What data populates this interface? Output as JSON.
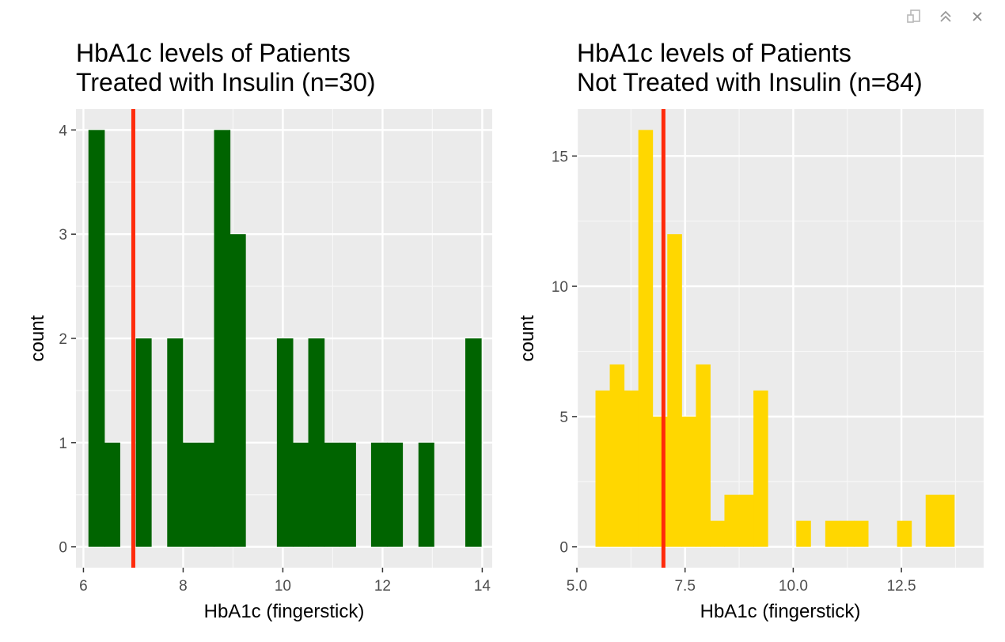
{
  "toolbar": {
    "icons": [
      "export-icon",
      "collapse-icon",
      "close-icon"
    ]
  },
  "chart_data": [
    {
      "type": "bar",
      "title": "HbA1c levels of Patients\nTreated with Insulin (n=30)",
      "xlabel": "HbA1c (fingerstick)",
      "ylabel": "count",
      "xlim": [
        5.85,
        14.2
      ],
      "ylim": [
        -0.2,
        4.2
      ],
      "x_ticks": [
        6,
        8,
        10,
        12,
        14
      ],
      "x_tick_labels": [
        "6",
        "8",
        "10",
        "12",
        "14"
      ],
      "y_ticks": [
        0,
        1,
        2,
        3,
        4
      ],
      "y_tick_labels": [
        "0",
        "1",
        "2",
        "3",
        "4"
      ],
      "bar_color": "#006400",
      "reference_line": {
        "x": 7.0,
        "color": "#ff2a0a"
      },
      "bins": [
        {
          "x0": 6.1,
          "x1": 6.42,
          "count": 4
        },
        {
          "x0": 6.42,
          "x1": 6.73,
          "count": 1
        },
        {
          "x0": 6.73,
          "x1": 7.05,
          "count": 0
        },
        {
          "x0": 7.05,
          "x1": 7.36,
          "count": 2
        },
        {
          "x0": 7.36,
          "x1": 7.68,
          "count": 0
        },
        {
          "x0": 7.68,
          "x1": 7.99,
          "count": 2
        },
        {
          "x0": 7.99,
          "x1": 8.31,
          "count": 1
        },
        {
          "x0": 8.31,
          "x1": 8.62,
          "count": 1
        },
        {
          "x0": 8.62,
          "x1": 8.94,
          "count": 4
        },
        {
          "x0": 8.94,
          "x1": 9.25,
          "count": 3
        },
        {
          "x0": 9.25,
          "x1": 9.57,
          "count": 0
        },
        {
          "x0": 9.57,
          "x1": 9.88,
          "count": 0
        },
        {
          "x0": 9.88,
          "x1": 10.2,
          "count": 2
        },
        {
          "x0": 10.2,
          "x1": 10.51,
          "count": 1
        },
        {
          "x0": 10.51,
          "x1": 10.83,
          "count": 2
        },
        {
          "x0": 10.83,
          "x1": 11.14,
          "count": 1
        },
        {
          "x0": 11.14,
          "x1": 11.46,
          "count": 1
        },
        {
          "x0": 11.46,
          "x1": 11.77,
          "count": 0
        },
        {
          "x0": 11.77,
          "x1": 12.09,
          "count": 1
        },
        {
          "x0": 12.09,
          "x1": 12.4,
          "count": 1
        },
        {
          "x0": 12.4,
          "x1": 12.72,
          "count": 0
        },
        {
          "x0": 12.72,
          "x1": 13.03,
          "count": 1
        },
        {
          "x0": 13.03,
          "x1": 13.35,
          "count": 0
        },
        {
          "x0": 13.35,
          "x1": 13.66,
          "count": 0
        },
        {
          "x0": 13.66,
          "x1": 13.98,
          "count": 2
        }
      ]
    },
    {
      "type": "bar",
      "title": "HbA1c levels of Patients\nNot Treated with Insulin (n=84)",
      "xlabel": "HbA1c (fingerstick)",
      "ylabel": "count",
      "xlim": [
        5.0,
        14.4
      ],
      "ylim": [
        -0.8,
        16.8
      ],
      "x_ticks": [
        5.0,
        7.5,
        10.0,
        12.5
      ],
      "x_tick_labels": [
        "5.0",
        "7.5",
        "10.0",
        "12.5"
      ],
      "y_ticks": [
        0,
        5,
        10,
        15
      ],
      "y_tick_labels": [
        "0",
        "5",
        "10",
        "15"
      ],
      "bar_color": "#ffd700",
      "reference_line": {
        "x": 7.0,
        "color": "#ff2a0a"
      },
      "bins": [
        {
          "x0": 5.43,
          "x1": 5.76,
          "count": 6
        },
        {
          "x0": 5.76,
          "x1": 6.09,
          "count": 7
        },
        {
          "x0": 6.09,
          "x1": 6.42,
          "count": 6
        },
        {
          "x0": 6.42,
          "x1": 6.75,
          "count": 16
        },
        {
          "x0": 6.75,
          "x1": 7.09,
          "count": 5
        },
        {
          "x0": 7.09,
          "x1": 7.42,
          "count": 12
        },
        {
          "x0": 7.42,
          "x1": 7.75,
          "count": 5
        },
        {
          "x0": 7.75,
          "x1": 8.08,
          "count": 7
        },
        {
          "x0": 8.08,
          "x1": 8.41,
          "count": 1
        },
        {
          "x0": 8.41,
          "x1": 8.75,
          "count": 2
        },
        {
          "x0": 8.75,
          "x1": 9.08,
          "count": 2
        },
        {
          "x0": 9.08,
          "x1": 9.41,
          "count": 6
        },
        {
          "x0": 9.41,
          "x1": 9.74,
          "count": 0
        },
        {
          "x0": 9.74,
          "x1": 10.07,
          "count": 0
        },
        {
          "x0": 10.07,
          "x1": 10.4,
          "count": 1
        },
        {
          "x0": 10.4,
          "x1": 10.74,
          "count": 0
        },
        {
          "x0": 10.74,
          "x1": 11.07,
          "count": 1
        },
        {
          "x0": 11.07,
          "x1": 11.4,
          "count": 1
        },
        {
          "x0": 11.4,
          "x1": 11.73,
          "count": 1
        },
        {
          "x0": 11.73,
          "x1": 12.06,
          "count": 0
        },
        {
          "x0": 12.06,
          "x1": 12.4,
          "count": 0
        },
        {
          "x0": 12.4,
          "x1": 12.73,
          "count": 1
        },
        {
          "x0": 12.73,
          "x1": 13.06,
          "count": 0
        },
        {
          "x0": 13.06,
          "x1": 13.39,
          "count": 2
        },
        {
          "x0": 13.39,
          "x1": 13.72,
          "count": 2
        }
      ]
    }
  ]
}
